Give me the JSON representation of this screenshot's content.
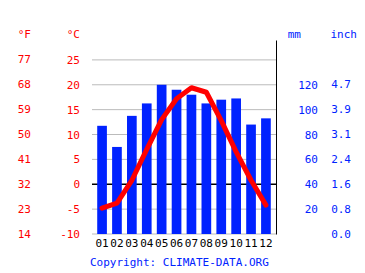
{
  "chart_data": {
    "type": "climate",
    "categories": [
      "01",
      "02",
      "03",
      "04",
      "05",
      "06",
      "07",
      "08",
      "09",
      "10",
      "11",
      "12"
    ],
    "series": [
      {
        "type": "bar",
        "color": "#0022ff",
        "axis": "y2",
        "values": [
          87,
          70,
          95,
          105,
          120,
          116,
          112,
          105,
          108,
          109,
          88,
          93
        ]
      },
      {
        "type": "line",
        "color": "#ff0000",
        "values": [
          -4.8,
          -3.8,
          0.8,
          7,
          13,
          17.2,
          19.4,
          18.5,
          12.8,
          6.5,
          0.8,
          -4.2
        ]
      }
    ],
    "y_label": "°C",
    "ylim": [
      -10,
      29
    ],
    "yticks": [
      -10,
      -5,
      0,
      5,
      10,
      15,
      20,
      25
    ],
    "y2_label": "mm",
    "y2lim": [
      0,
      156
    ],
    "y2ticks": [
      20,
      40,
      60,
      80,
      100,
      120
    ],
    "fahrenheit": {
      "label": "°F",
      "ticks": [
        {
          "value": -10,
          "label": "14"
        },
        {
          "value": -5,
          "label": "23"
        },
        {
          "value": 0,
          "label": "32"
        },
        {
          "value": 5,
          "label": "41"
        },
        {
          "value": 10,
          "label": "50"
        },
        {
          "value": 15,
          "label": "59"
        },
        {
          "value": 20,
          "label": "68"
        },
        {
          "value": 25,
          "label": "77"
        }
      ]
    },
    "inch": {
      "label": "inch",
      "ticks": [
        {
          "value": 0,
          "label": "0.0"
        },
        {
          "value": 20,
          "label": "0.8"
        },
        {
          "value": 40,
          "label": "1.6"
        },
        {
          "value": 60,
          "label": "2.4"
        },
        {
          "value": 80,
          "label": "3.1"
        },
        {
          "value": 100,
          "label": "3.9"
        },
        {
          "value": 120,
          "label": "4.7"
        }
      ]
    },
    "annotations": [
      "Copyright: CLIMATE-DATA.ORG"
    ],
    "grid": true
  }
}
